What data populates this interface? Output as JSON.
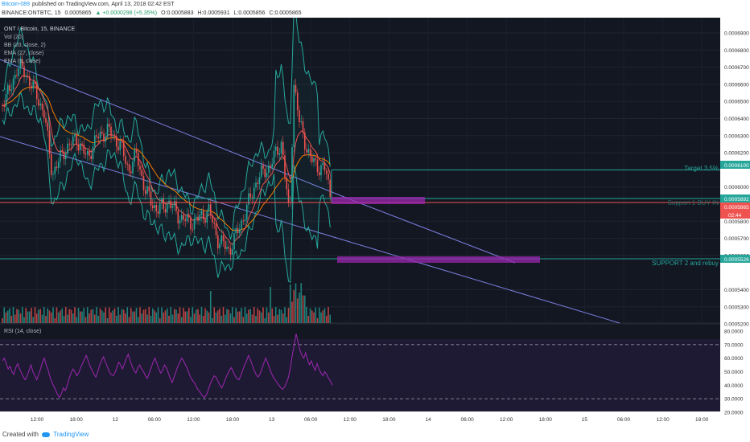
{
  "header": {
    "line1": {
      "author": "Bitcoin-089",
      "rest": "published on TradingView.com, April 13, 2018 02:42 EST"
    },
    "line2": {
      "symbol": "BINANCE:ONTBTC, 15",
      "last": "0.0005865",
      "change": "▲ +0.0000298 (+5.35%)",
      "open": "O:0.0005883",
      "high": "H:0.0005931",
      "low": "L:0.0005856",
      "close": "C:0.0005865"
    }
  },
  "legend": {
    "title": "ONT / Bitcoin, 15, BINANCE",
    "items": [
      "Vol (20)",
      "BB (20, close, 2)",
      "EMA (27, close)",
      "EMA (9, close)"
    ]
  },
  "rsi_label": "RSI (14, close)",
  "annotations": {
    "target": "Target 3,5%",
    "support1": "Support 1 BUY IN",
    "support2": "SUPPORT 2 and rebuy"
  },
  "price_tags": {
    "target": "0.0006100",
    "support1": "0.0005892",
    "current": "0.0005865",
    "countdown": "02:44",
    "support2": "0.0005526"
  },
  "footer": {
    "prefix": "Created with",
    "brand": "TradingView"
  },
  "colors": {
    "bg": "#131722",
    "rsi_bg": "#1f1a33",
    "up": "#26a69a",
    "down": "#ef5350",
    "level_line": "#26a69a",
    "current_line": "#ef5350",
    "zone": "#9c27b0",
    "channel": "#7b7fe0",
    "rsi_line": "#9c27b0"
  },
  "chart_data": {
    "type": "candlestick",
    "price_axis": {
      "ticks": [
        "0.0006900",
        "0.0006800",
        "0.0006700",
        "0.0006600",
        "0.0006500",
        "0.0006400",
        "0.0006300",
        "0.0006200",
        "0.0006000",
        "0.0005800",
        "0.0005700",
        "0.0005600",
        "0.0005400",
        "0.0005300",
        "0.0005200"
      ],
      "range": [
        0.00051,
        0.0007
      ]
    },
    "time_axis": {
      "ticks": [
        "12:00",
        "18:00",
        "12",
        "06:00",
        "12:00",
        "18:00",
        "13",
        "06:00",
        "12:00",
        "18:00",
        "14",
        "06:00",
        "12:00",
        "18:00",
        "15",
        "06:00",
        "12:00",
        "18:00"
      ]
    },
    "rsi": {
      "ticks": [
        "80.0000",
        "70.0000",
        "60.0000",
        "50.0000",
        "40.0000",
        "30.0000",
        "20.0000"
      ],
      "range": [
        20,
        80
      ],
      "bands": [
        30,
        70
      ],
      "values": [
        58,
        60,
        56,
        52,
        54,
        50,
        48,
        53,
        56,
        52,
        49,
        46,
        44,
        47,
        51,
        55,
        50,
        47,
        44,
        48,
        52,
        57,
        60,
        55,
        51,
        46,
        42,
        39,
        36,
        33,
        31,
        34,
        38,
        36,
        40,
        45,
        49,
        52,
        50,
        47,
        49,
        53,
        56,
        59,
        62,
        58,
        54,
        51,
        48,
        46,
        50,
        55,
        58,
        61,
        57,
        54,
        50,
        48,
        47,
        49,
        53,
        57,
        55,
        52,
        56,
        60,
        63,
        58,
        54,
        51,
        49,
        53,
        55,
        52,
        50,
        47,
        45,
        49,
        53,
        57,
        60,
        56,
        52,
        49,
        51,
        55,
        53,
        49,
        45,
        42,
        46,
        50,
        54,
        57,
        60,
        58,
        55,
        52,
        48,
        45,
        43,
        41,
        38,
        36,
        34,
        32,
        31,
        33,
        37,
        41,
        44,
        47,
        46,
        43,
        40,
        38,
        41,
        45,
        48,
        51,
        53,
        50,
        47,
        45,
        44,
        47,
        51,
        55,
        58,
        62,
        59,
        55,
        51,
        48,
        46,
        48,
        52,
        56,
        60,
        57,
        53,
        49,
        46,
        44,
        42,
        40,
        38,
        37,
        39,
        42,
        46,
        53,
        62,
        70,
        78,
        72,
        66,
        62,
        60,
        64,
        59,
        55,
        58,
        54,
        51,
        56,
        52,
        49,
        47,
        50,
        48,
        45,
        43,
        40
      ]
    },
    "levels": {
      "target": 0.00061,
      "support1": 0.0005892,
      "current": 0.0005865,
      "support2": 0.0005526
    }
  }
}
